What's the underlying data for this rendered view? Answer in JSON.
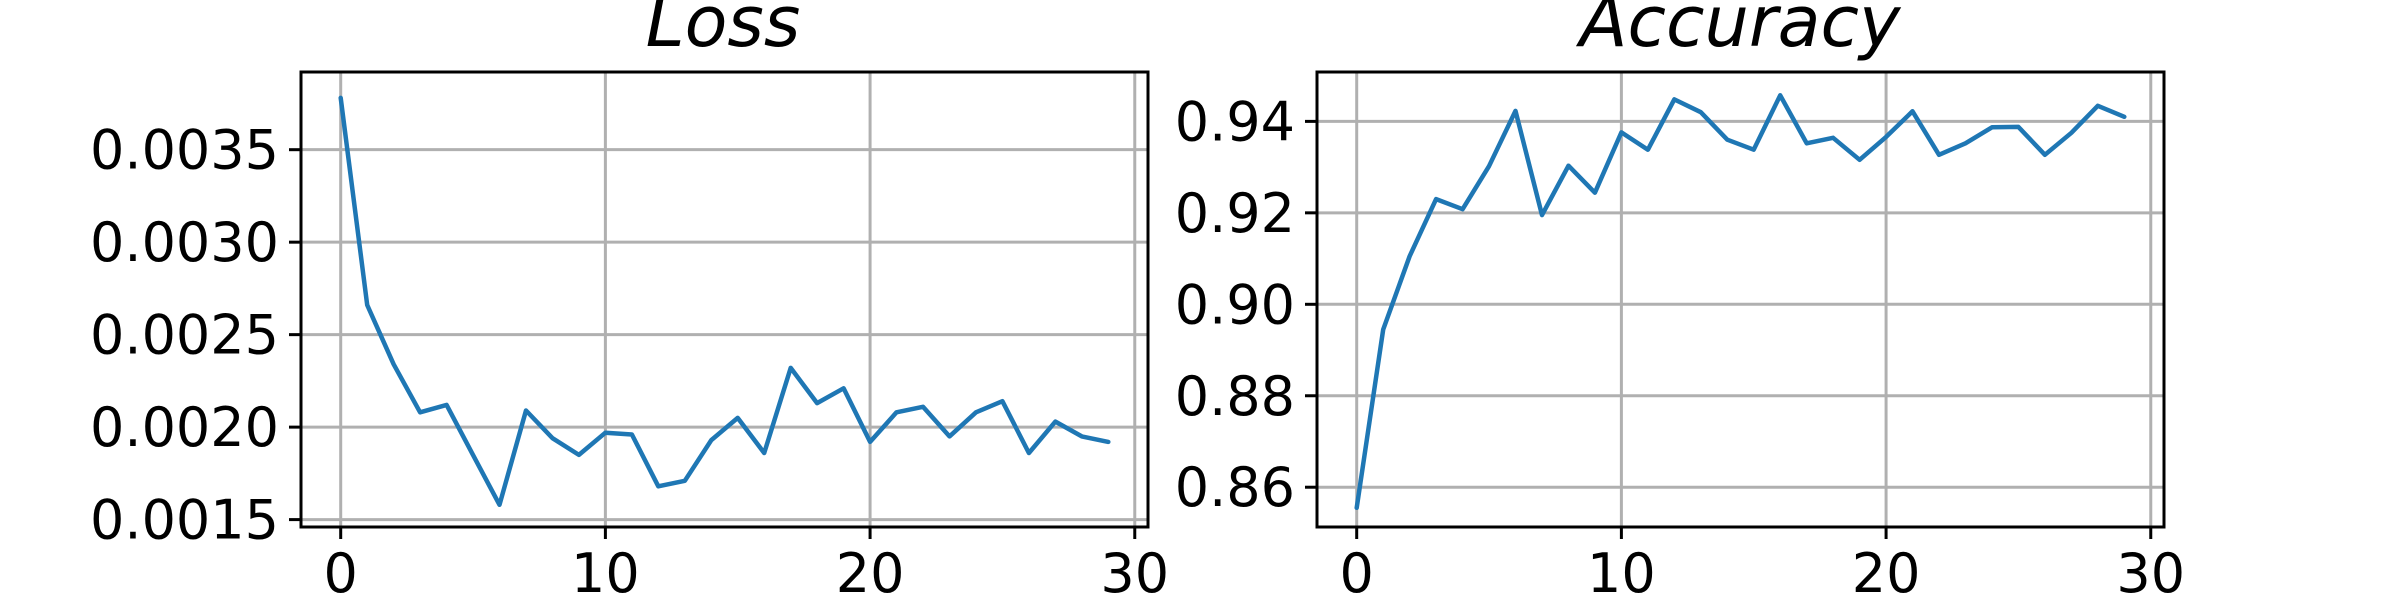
{
  "chart_data": [
    {
      "type": "line",
      "title": "Loss",
      "xlabel": "",
      "ylabel": "",
      "xlim": [
        -1.5,
        30.5
      ],
      "ylim": [
        0.00146,
        0.00392
      ],
      "xticks": [
        0,
        10,
        20,
        30
      ],
      "xtick_labels": [
        "0",
        "10",
        "20",
        "30"
      ],
      "yticks": [
        0.0015,
        0.002,
        0.0025,
        0.003,
        0.0035
      ],
      "ytick_labels": [
        "0.0015",
        "0.0020",
        "0.0025",
        "0.0030",
        "0.0035"
      ],
      "grid": true,
      "series": [
        {
          "color": "#1f77b4",
          "x": [
            0,
            1,
            2,
            3,
            4,
            5,
            6,
            7,
            8,
            9,
            10,
            11,
            12,
            13,
            14,
            15,
            16,
            17,
            18,
            19,
            20,
            21,
            22,
            23,
            24,
            25,
            26,
            27,
            28,
            29
          ],
          "y": [
            0.00378,
            0.00266,
            0.00234,
            0.00208,
            0.00212,
            0.00185,
            0.00158,
            0.00209,
            0.00194,
            0.00185,
            0.00197,
            0.00196,
            0.00168,
            0.00171,
            0.00193,
            0.00205,
            0.00186,
            0.00232,
            0.00213,
            0.00221,
            0.00192,
            0.00208,
            0.00211,
            0.00195,
            0.00208,
            0.00214,
            0.00186,
            0.00203,
            0.00195,
            0.00192
          ]
        }
      ]
    },
    {
      "type": "line",
      "title": "Accuracy",
      "xlabel": "",
      "ylabel": "",
      "xlim": [
        -1.5,
        30.5
      ],
      "ylim": [
        0.8513,
        0.9508
      ],
      "xticks": [
        0,
        10,
        20,
        30
      ],
      "xtick_labels": [
        "0",
        "10",
        "20",
        "30"
      ],
      "yticks": [
        0.86,
        0.88,
        0.9,
        0.92,
        0.94
      ],
      "ytick_labels": [
        "0.86",
        "0.88",
        "0.90",
        "0.92",
        "0.94"
      ],
      "grid": true,
      "series": [
        {
          "color": "#1f77b4",
          "x": [
            0,
            1,
            2,
            3,
            4,
            5,
            6,
            7,
            8,
            9,
            10,
            11,
            12,
            13,
            14,
            15,
            16,
            17,
            18,
            19,
            20,
            21,
            22,
            23,
            24,
            25,
            26,
            27,
            28,
            29
          ],
          "y": [
            0.8555,
            0.8945,
            0.9105,
            0.923,
            0.9208,
            0.9302,
            0.9423,
            0.9195,
            0.9303,
            0.9244,
            0.9376,
            0.9338,
            0.9448,
            0.942,
            0.936,
            0.9338,
            0.9457,
            0.9352,
            0.9364,
            0.9316,
            0.9366,
            0.9422,
            0.9327,
            0.9352,
            0.9387,
            0.9388,
            0.9327,
            0.9375,
            0.9434,
            0.941
          ]
        }
      ]
    }
  ]
}
